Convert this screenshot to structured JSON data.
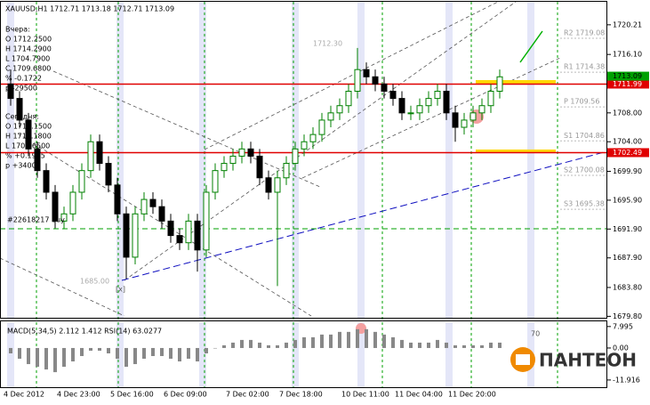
{
  "header": "XAUUSD,H1  1712.71 1713.18 1712.71 1713.09",
  "info_lines": [
    "Вчера:",
    "O 1712.2500",
    "H 1714.2900",
    "L 1704.7900",
    "C 1709.6800",
    "% -0.1722",
    "p -29500",
    "Сегодня:",
    "O 1710.1500",
    "H 1713.1800",
    "L 1709.6500",
    "% +0.1935",
    "p +34000"
  ],
  "order_label": "#22618217 buy",
  "annotations": [
    "1712.30",
    "1685.00",
    "[x]"
  ],
  "logo": "ПАНТЕОН",
  "chart_data": {
    "type": "candlestick",
    "up_color": "#008000",
    "down_color": "#000000",
    "categories": [
      "4 Dec 2012",
      null,
      null,
      null,
      null,
      null,
      "4 Dec 23:00",
      null,
      null,
      null,
      null,
      null,
      "5 Dec 16:00",
      null,
      null,
      null,
      null,
      null,
      "6 Dec 09:00",
      null,
      null,
      null,
      null,
      null,
      null,
      "7 Dec 02:00",
      null,
      null,
      null,
      null,
      null,
      "7 Dec 18:00",
      null,
      null,
      null,
      null,
      null,
      null,
      "10 Dec 11:00",
      null,
      null,
      null,
      null,
      null,
      "11 Dec 04:00",
      null,
      null,
      null,
      null,
      null,
      "11 Dec 20:00",
      null,
      null,
      null,
      null,
      null
    ],
    "open": [
      1712,
      1710,
      1707,
      1703,
      1700,
      1697,
      1693,
      1694,
      1697,
      1700,
      1704,
      1701,
      1698,
      1694,
      1688,
      1694,
      1696,
      1695,
      1693,
      1691,
      1690,
      1693,
      1689,
      1697,
      1700,
      1701,
      1702,
      1703,
      1702,
      1699,
      1697,
      1699,
      1701,
      1703,
      1704,
      1705,
      1707,
      1708,
      1709,
      1711,
      1714,
      1713,
      1712,
      1711,
      1710,
      1708,
      1708,
      1709,
      1710,
      1711,
      1708,
      1706,
      1707,
      1708,
      1709,
      1711
    ],
    "high": [
      1714,
      1711,
      1708,
      1704,
      1701,
      1698,
      1695,
      1698,
      1701,
      1705,
      1705,
      1702,
      1699,
      1695,
      1695,
      1697,
      1697,
      1696,
      1694,
      1692,
      1694,
      1694,
      1698,
      1701,
      1702,
      1703,
      1704,
      1704,
      1703,
      1700,
      1700,
      1702,
      1704,
      1705,
      1706,
      1708,
      1709,
      1710,
      1712,
      1717,
      1715,
      1714,
      1713,
      1712,
      1711,
      1709,
      1710,
      1711,
      1712,
      1712,
      1709,
      1708,
      1709,
      1710,
      1712,
      1714
    ],
    "low": [
      1709,
      1706,
      1702,
      1699,
      1696,
      1692,
      1692,
      1693,
      1696,
      1699,
      1700,
      1697,
      1693,
      1685,
      1687,
      1693,
      1694,
      1692,
      1690,
      1689,
      1689,
      1686,
      1688,
      1696,
      1699,
      1700,
      1701,
      1701,
      1698,
      1696,
      1684,
      1698,
      1700,
      1702,
      1703,
      1704,
      1706,
      1707,
      1708,
      1710,
      1712,
      1711,
      1710,
      1709,
      1707,
      1707,
      1707,
      1708,
      1709,
      1707,
      1704,
      1705,
      1706,
      1707,
      1708,
      1710
    ],
    "close": [
      1710,
      1707,
      1703,
      1700,
      1697,
      1693,
      1694,
      1697,
      1700,
      1704,
      1701,
      1698,
      1694,
      1688,
      1694,
      1696,
      1695,
      1693,
      1691,
      1690,
      1693,
      1689,
      1697,
      1700,
      1701,
      1702,
      1703,
      1702,
      1699,
      1697,
      1699,
      1701,
      1703,
      1704,
      1705,
      1707,
      1708,
      1709,
      1711,
      1714,
      1713,
      1712,
      1711,
      1710,
      1708,
      1708,
      1709,
      1710,
      1711,
      1708,
      1706,
      1707,
      1708,
      1709,
      1711,
      1713
    ],
    "ylim": [
      1679.6,
      1723.4
    ],
    "yticks": [
      {
        "value": 1720.21,
        "label": "1720.21"
      },
      {
        "value": 1716.1,
        "label": "1716.10"
      },
      {
        "value": 1712,
        "label": "1712.00"
      },
      {
        "value": 1708,
        "label": "1708.00"
      },
      {
        "value": 1704,
        "label": "1704.00"
      },
      {
        "value": 1699.9,
        "label": "1699.90"
      },
      {
        "value": 1695.9,
        "label": "1695.90"
      },
      {
        "value": 1691.9,
        "label": "1691.90"
      },
      {
        "value": 1687.9,
        "label": "1687.90"
      },
      {
        "value": 1683.8,
        "label": "1683.80"
      },
      {
        "value": 1679.8,
        "label": "1679.80"
      }
    ],
    "level_lines": [
      {
        "value": 1711.99,
        "label": "1711.99",
        "color": "#e00000"
      },
      {
        "value": 1702.49,
        "label": "1702.49",
        "color": "#e00000"
      }
    ],
    "last_price": {
      "value": 1713.09,
      "label": "1713.09",
      "color": "#00a000"
    },
    "pivots": [
      {
        "value": 1719.08,
        "label": "R2 1719.08"
      },
      {
        "value": 1714.38,
        "label": "R1 1714.38"
      },
      {
        "value": 1709.56,
        "label": "P 1709.56"
      },
      {
        "value": 1704.86,
        "label": "S1 1704.86"
      },
      {
        "value": 1700.08,
        "label": "S2 1700.08"
      },
      {
        "value": 1695.38,
        "label": "S3 1695.38"
      }
    ],
    "indicator": {
      "title": "MACD(5,34,5) 2.112 1.412  RSI(14) 63.0277",
      "values": [
        -2,
        -4,
        -6,
        -7,
        -8,
        -9,
        -7,
        -5,
        -3,
        -1,
        -1,
        -2,
        -4,
        -7,
        -6,
        -4,
        -3,
        -3,
        -4,
        -5,
        -4,
        -5,
        -2,
        0,
        1,
        2,
        3,
        3,
        2,
        1,
        1,
        2,
        3,
        4,
        4,
        5,
        5,
        6,
        6,
        7,
        7,
        6,
        5,
        4,
        3,
        2,
        2,
        2,
        3,
        2,
        1,
        1,
        1,
        1,
        2,
        2
      ],
      "color": "#888888",
      "ylim": [
        -14.6,
        9.6
      ],
      "yticks": [
        {
          "value": 7.995,
          "label": "7.995"
        },
        {
          "value": 0,
          "label": "0.00"
        },
        {
          "value": -11.916,
          "label": "-11.916"
        }
      ],
      "rsi_level": 70
    }
  }
}
